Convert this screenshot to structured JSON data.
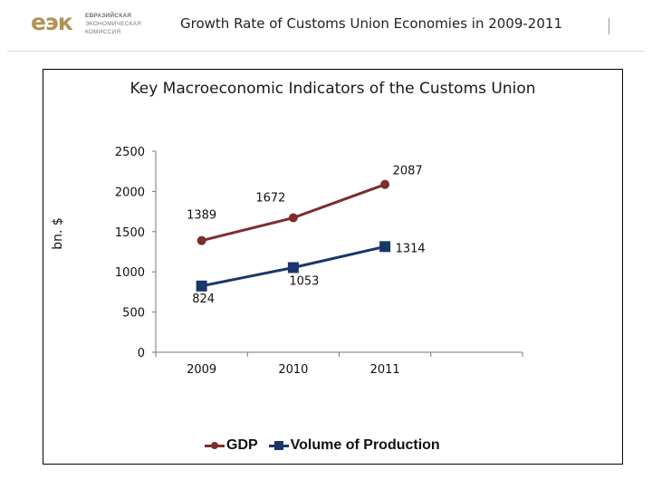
{
  "header": {
    "logo_mark": "еэк",
    "logo_text": [
      "ЕВРАЗИЙСКАЯ",
      "ЭКОНОМИЧЕСКАЯ",
      "КОМИССИЯ"
    ],
    "title": "Growth Rate of Customs Union Economies in 2009-2011"
  },
  "colors": {
    "gdp": "#7b2e2a",
    "production": "#1c3669"
  },
  "chart_data": {
    "type": "line",
    "title": "Key Macroeconomic Indicators of the Customs Union",
    "ylabel": "bn. $",
    "xlabel": "",
    "categories": [
      "2009",
      "2010",
      "2011"
    ],
    "ylim": [
      0,
      2500
    ],
    "yticks": [
      "0",
      "500",
      "1000",
      "1500",
      "2000",
      "2500"
    ],
    "grid": false,
    "legend_position": "bottom",
    "series": [
      {
        "name": "GDP",
        "values": [
          1389,
          1672,
          2087
        ],
        "labels": [
          "1389",
          "1672",
          "2087"
        ],
        "marker": "circle"
      },
      {
        "name": "Volume of Production",
        "values": [
          824,
          1053,
          1314
        ],
        "labels": [
          "824",
          "1053",
          "1314"
        ],
        "marker": "square"
      }
    ]
  }
}
